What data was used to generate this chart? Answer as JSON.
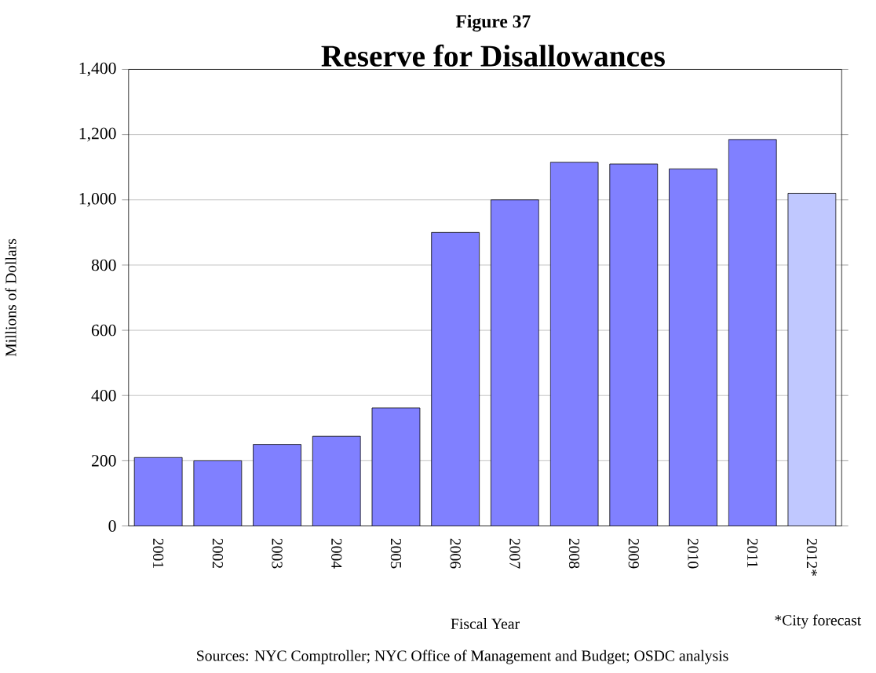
{
  "chart_data": {
    "type": "bar",
    "subtitle": "Figure 37",
    "title": "Reserve for Disallowances",
    "xlabel": "Fiscal Year",
    "ylabel": "Millions of Dollars",
    "categories": [
      "2001",
      "2002",
      "2003",
      "2004",
      "2005",
      "2006",
      "2007",
      "2008",
      "2009",
      "2010",
      "2011",
      "2012*"
    ],
    "values": [
      210,
      200,
      250,
      275,
      362,
      900,
      1000,
      1115,
      1110,
      1095,
      1185,
      1020
    ],
    "colors": [
      "#8080ff",
      "#8080ff",
      "#8080ff",
      "#8080ff",
      "#8080ff",
      "#8080ff",
      "#8080ff",
      "#8080ff",
      "#8080ff",
      "#8080ff",
      "#8080ff",
      "#c0c8ff"
    ],
    "ylim": [
      0,
      1400
    ],
    "yticks": [
      0,
      200,
      400,
      600,
      800,
      {
        "value": 1000,
        "label": "1,000"
      },
      {
        "value": 1200,
        "label": "1,200"
      },
      {
        "value": 1400,
        "label": "1,400"
      }
    ],
    "grid": "y",
    "annotations": [
      "*City forecast",
      "Sources: NYC Comptroller; NYC Office of Management and Budget; OSDC analysis"
    ]
  }
}
